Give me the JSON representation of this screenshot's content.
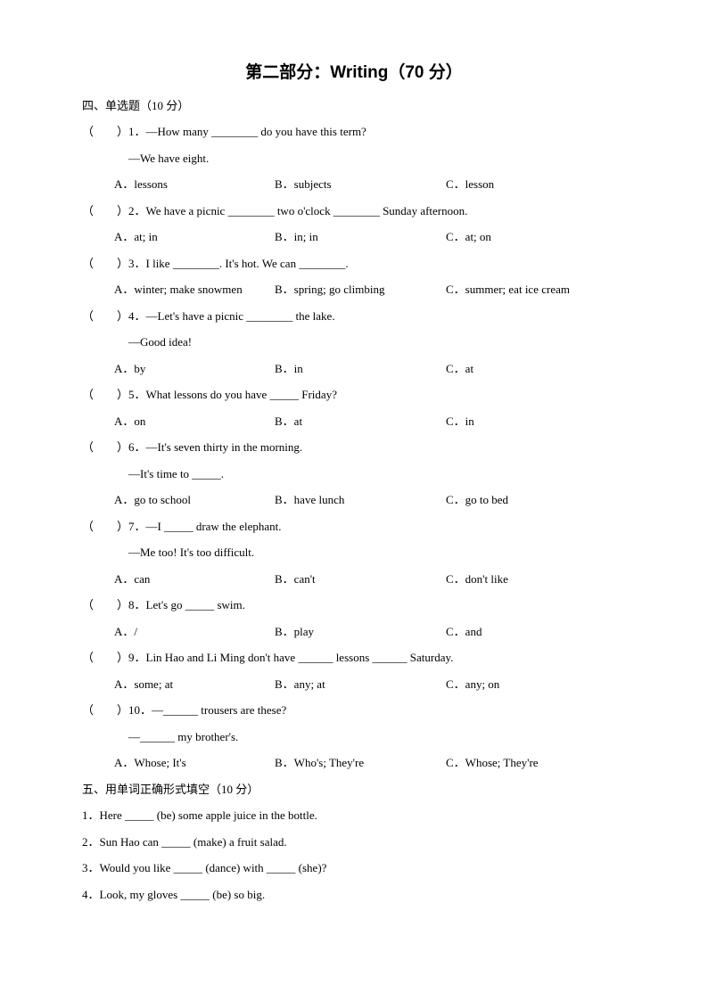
{
  "title": "第二部分：Writing（70 分）",
  "section4": {
    "heading": "四、单选题（10 分）",
    "questions": [
      {
        "num": "（　　）1．",
        "stem": "—How many ________ do you have this term?",
        "stem2": "—We have eight.",
        "a": "A．lessons",
        "b": "B．subjects",
        "c": "C．lesson"
      },
      {
        "num": "（　　）2．",
        "stem": "We have a picnic ________ two o'clock ________ Sunday afternoon.",
        "a": "A．at; in",
        "b": "B．in; in",
        "c": "C．at; on"
      },
      {
        "num": "（　　）3．",
        "stem": "I like ________. It's hot. We can ________.",
        "a": "A．winter; make snowmen",
        "b": "B．spring; go climbing",
        "c": "C．summer; eat ice cream"
      },
      {
        "num": "（　　）4．",
        "stem": "—Let's have a picnic ________ the lake.",
        "stem2": "—Good idea!",
        "a": "A．by",
        "b": "B．in",
        "c": "C．at"
      },
      {
        "num": "（　　）5．",
        "stem": "What lessons do you have _____ Friday?",
        "a": "A．on",
        "b": "B．at",
        "c": "C．in"
      },
      {
        "num": "（　　）6．",
        "stem": "—It's seven thirty in the morning.",
        "stem2": "—It's time to _____.",
        "a": "A．go to school",
        "b": "B．have lunch",
        "c": "C．go to bed"
      },
      {
        "num": "（　　）7．",
        "stem": "—I _____ draw the elephant.",
        "stem2": "—Me too! It's too difficult.",
        "a": "A．can",
        "b": "B．can't",
        "c": "C．don't like"
      },
      {
        "num": "（　　）8．",
        "stem": "Let's go _____ swim.",
        "a": "A．/",
        "b": "B．play",
        "c": "C．and"
      },
      {
        "num": "（　　）9．",
        "stem": "Lin Hao and Li Ming don't have ______ lessons ______ Saturday.",
        "a": "A．some; at",
        "b": "B．any; at",
        "c": "C．any; on"
      },
      {
        "num": "（　　）10．",
        "stem": "—______ trousers are these?",
        "stem2": "—______ my brother's.",
        "a": "A．Whose; It's",
        "b": "B．Who's; They're",
        "c": "C．Whose; They're"
      }
    ]
  },
  "section5": {
    "heading": "五、用单词正确形式填空（10 分）",
    "items": [
      "1．Here  _____  (be) some apple juice in the bottle.",
      "2．Sun Hao can  _____  (make) a fruit salad.",
      "3．Would you like  _____  (dance) with  _____  (she)?",
      "4．Look, my gloves  _____  (be) so big."
    ]
  }
}
